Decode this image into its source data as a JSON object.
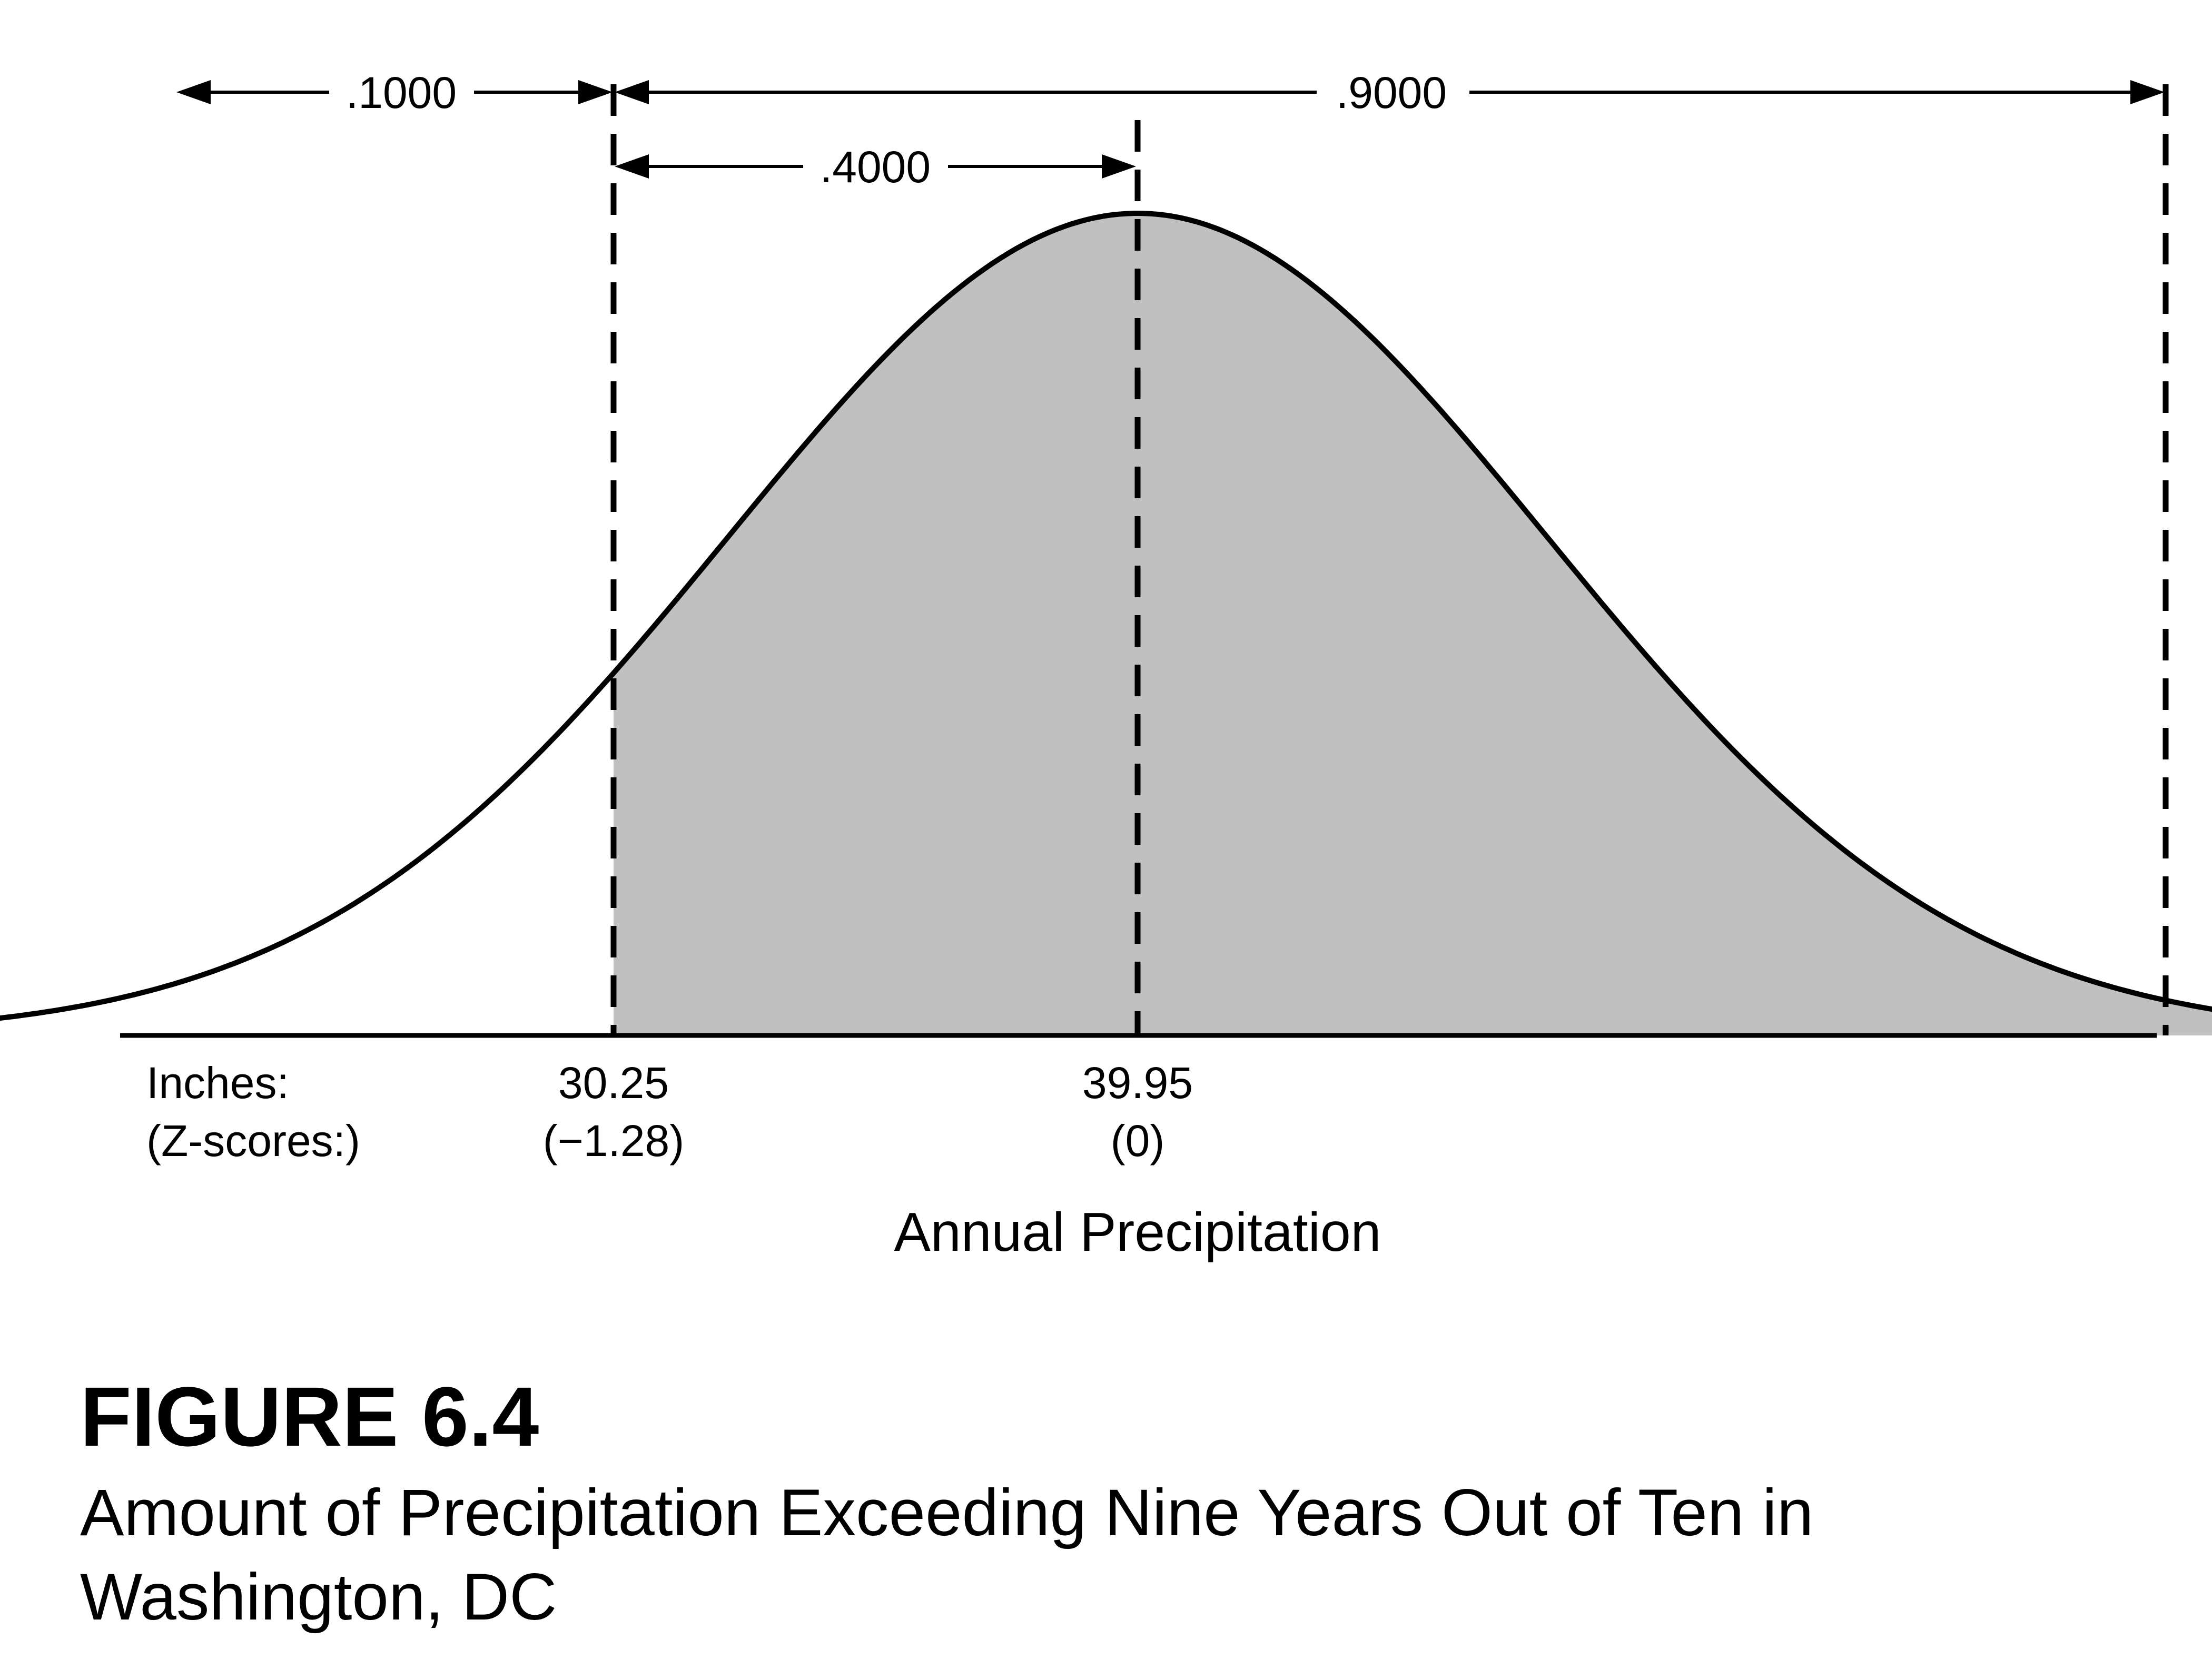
{
  "figure": {
    "number": "FIGURE 6.4",
    "title_line1": "Amount of Precipitation Exceeding Nine Years Out of Ten in",
    "title_line2": "Washington, DC"
  },
  "axis": {
    "title": "Annual Precipitation",
    "row_label_inches": "Inches:",
    "row_label_z": "(Z-scores:)"
  },
  "markers": [
    {
      "inches": "30.25",
      "z": "(−1.28)",
      "z_value": -1.28
    },
    {
      "inches": "39.95",
      "z": "(0)",
      "z_value": 0
    }
  ],
  "areas": {
    "left_tail": ".1000",
    "cutoff_to_mean": ".4000",
    "above_cutoff": ".9000"
  },
  "distribution": {
    "mean_inches": 39.95,
    "z_range": [
      -3.8,
      3.9
    ],
    "shaded_from_z": -1.28,
    "shade_color": "#c0c0c0",
    "line_color": "#000000"
  }
}
